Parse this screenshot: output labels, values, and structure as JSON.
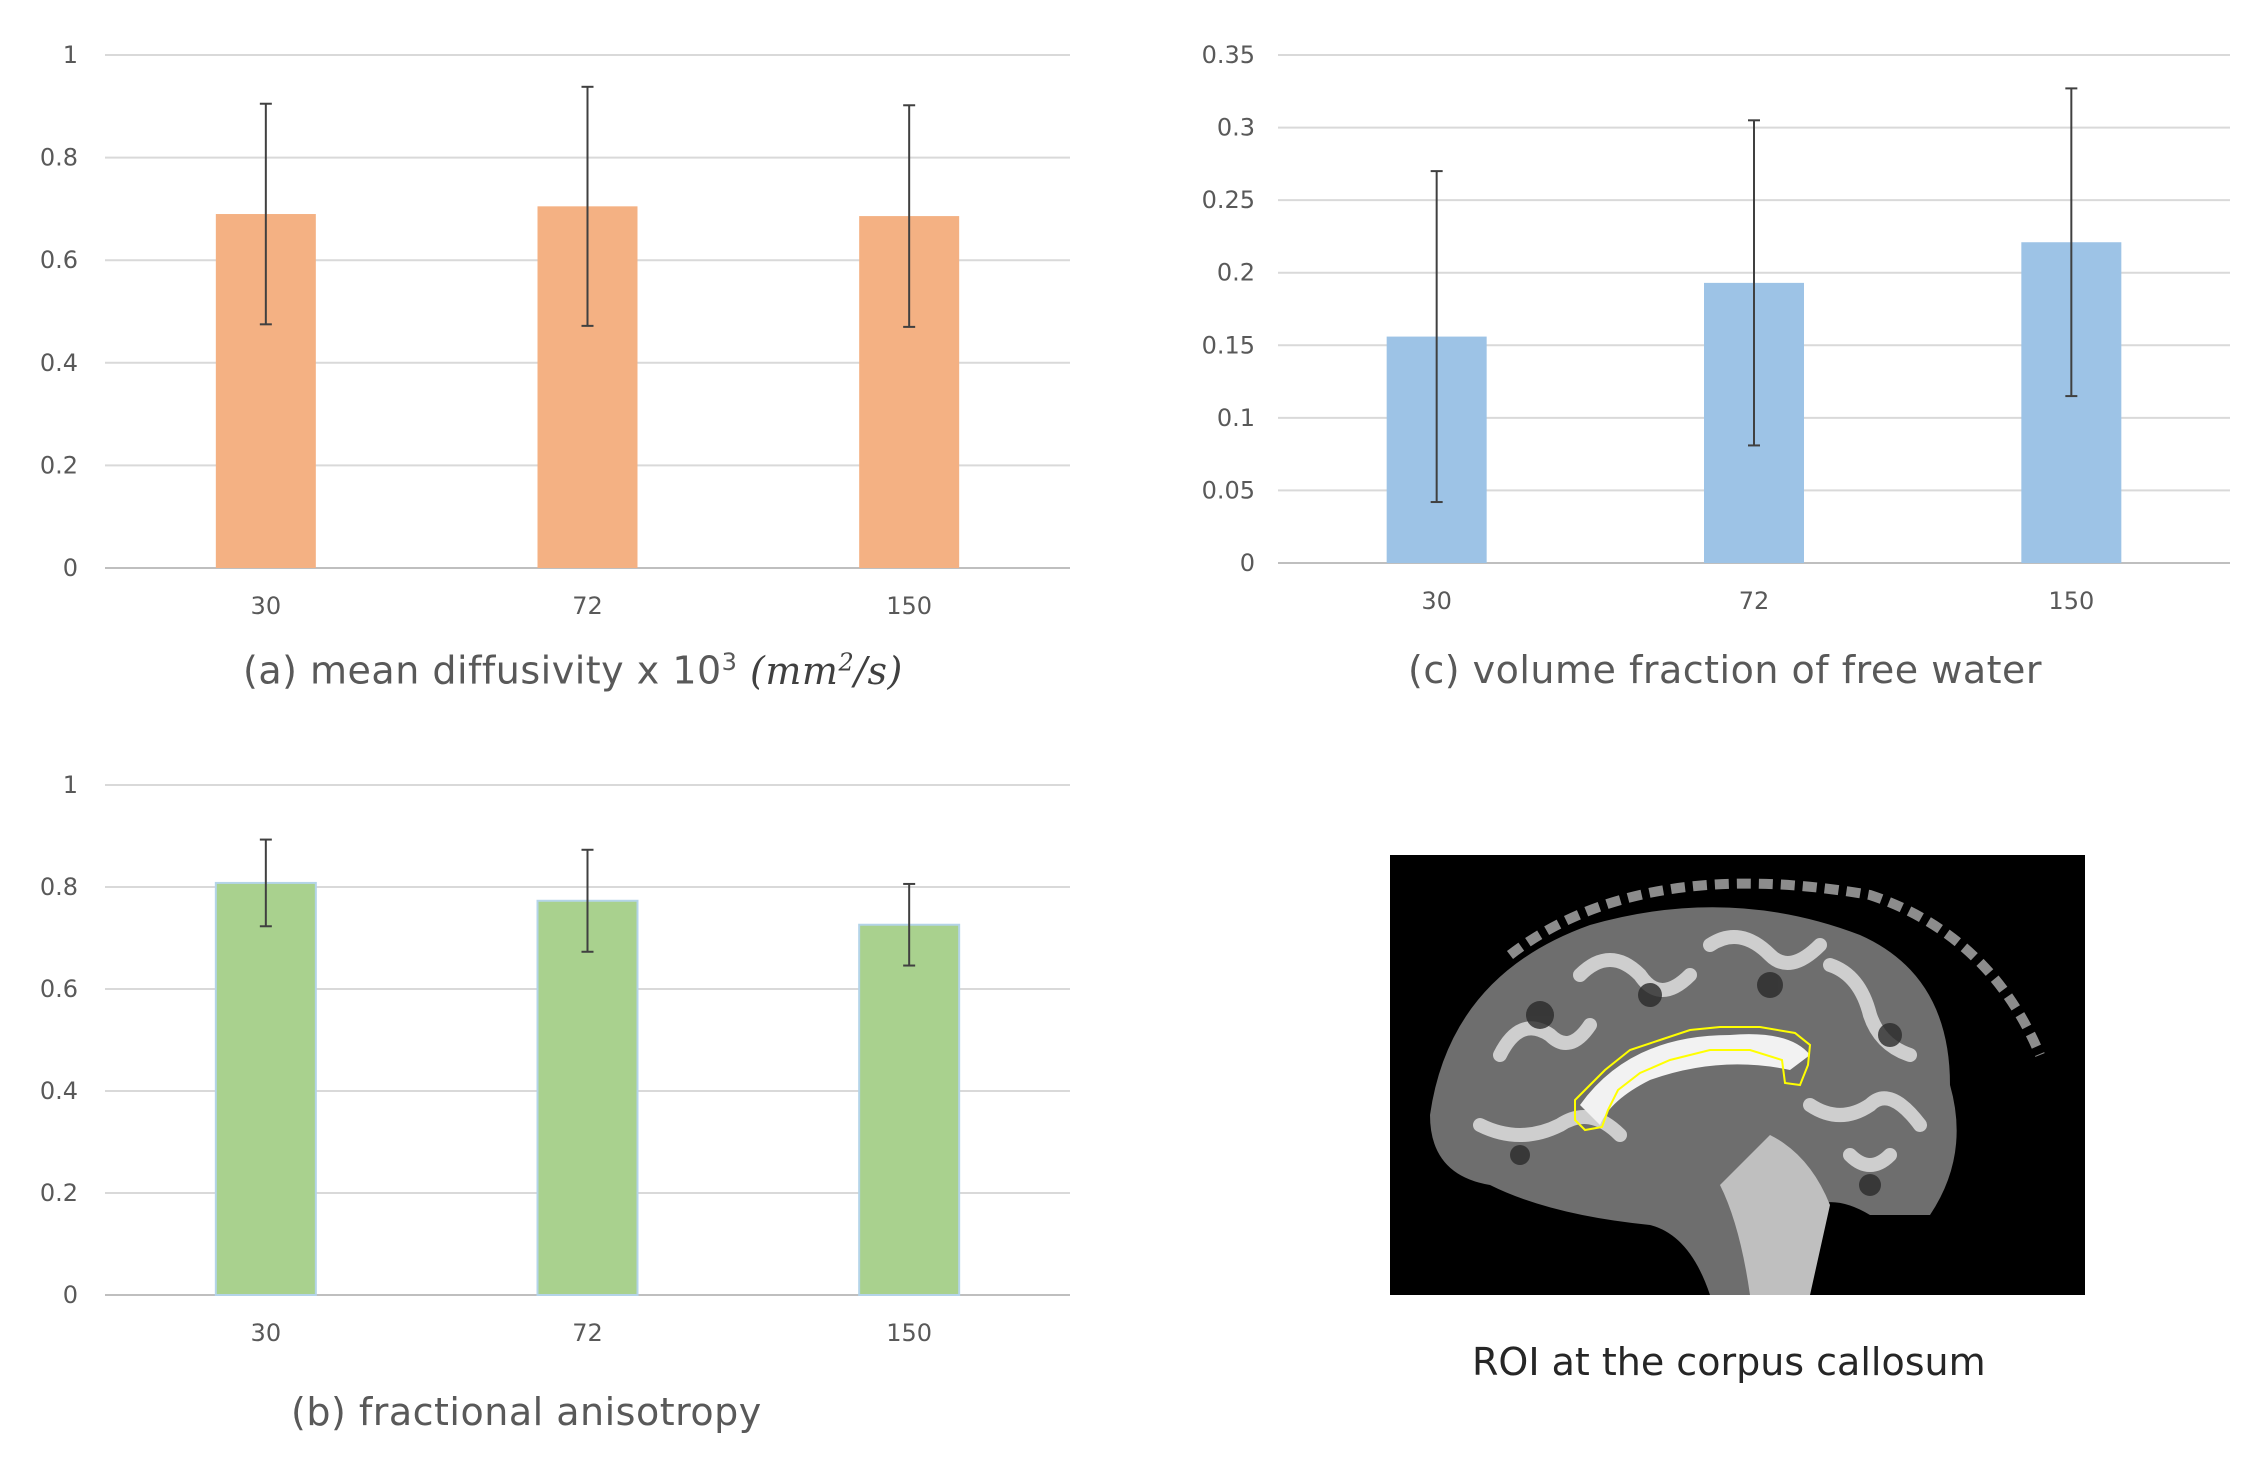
{
  "chart_data": [
    {
      "id": "a",
      "type": "bar",
      "categories": [
        "30",
        "72",
        "150"
      ],
      "values": [
        0.69,
        0.705,
        0.686
      ],
      "errors": [
        0.215,
        0.233,
        0.216
      ],
      "yticks": [
        "0",
        "0.2",
        "0.4",
        "0.6",
        "0.8",
        "1"
      ],
      "ylim": [
        0,
        1
      ],
      "color": "#F4B183",
      "title_prefix": "(a) mean diffusivity x 10",
      "title_sup": "3",
      "title_unit_base": "mm",
      "title_unit_sup": "2",
      "title_unit_rest": "/s",
      "xlabel": "",
      "ylabel": "",
      "grid": true
    },
    {
      "id": "c",
      "type": "bar",
      "categories": [
        "30",
        "72",
        "150"
      ],
      "values": [
        0.156,
        0.193,
        0.221
      ],
      "errors": [
        0.114,
        0.112,
        0.106
      ],
      "yticks": [
        "0",
        "0.05",
        "0.1",
        "0.15",
        "0.2",
        "0.25",
        "0.3",
        "0.35"
      ],
      "ylim": [
        0,
        0.35
      ],
      "color": "#9DC3E6",
      "title": "(c) volume fraction of free water",
      "xlabel": "",
      "ylabel": "",
      "grid": true
    },
    {
      "id": "b",
      "type": "bar",
      "categories": [
        "30",
        "72",
        "150"
      ],
      "values": [
        0.808,
        0.773,
        0.726
      ],
      "errors": [
        0.085,
        0.1,
        0.08
      ],
      "yticks": [
        "0",
        "0.2",
        "0.4",
        "0.6",
        "0.8",
        "1"
      ],
      "ylim": [
        0,
        1
      ],
      "color": "#A9D18E",
      "title": "(b) fractional anisotropy",
      "xlabel": "",
      "ylabel": "",
      "grid": true
    }
  ],
  "roi": {
    "caption": "ROI at the corpus callosum",
    "outline_color": "#FFFF00"
  }
}
